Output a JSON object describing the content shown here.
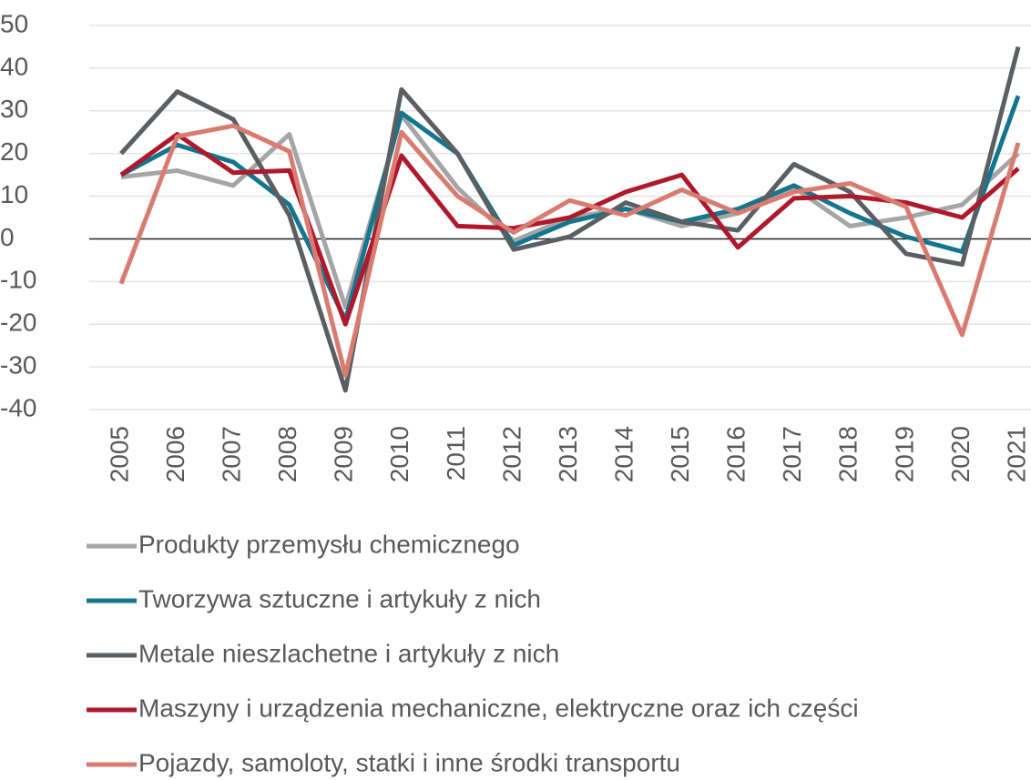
{
  "chart_data": {
    "type": "line",
    "categories": [
      "2005",
      "2006",
      "2007",
      "2008",
      "2009",
      "2010",
      "2011",
      "2012",
      "2013",
      "2014",
      "2015",
      "2016",
      "2017",
      "2018",
      "2019",
      "2020",
      "2021"
    ],
    "series": [
      {
        "name": "Produkty przemysłu chemicznego",
        "color": "#a5a5a5",
        "values": [
          14.5,
          16,
          12.5,
          24.5,
          -16,
          29,
          12,
          -0.5,
          5,
          7,
          3,
          6,
          12,
          3,
          5,
          8,
          20
        ]
      },
      {
        "name": "Tworzywa sztuczne i artykuły z nich",
        "color": "#14758f",
        "values": [
          15,
          22,
          18,
          8,
          -19,
          29.5,
          20,
          -1.5,
          4,
          7,
          4,
          7,
          12.5,
          6,
          0.5,
          -3,
          33.5
        ]
      },
      {
        "name": "Metale nieszlachetne i artykuły z nich",
        "color": "#5a5f63",
        "values": [
          20,
          34.5,
          28,
          5.5,
          -35.5,
          35,
          20,
          -2.5,
          0.5,
          8.5,
          4,
          2,
          17.5,
          11,
          -3.5,
          -6,
          45
        ]
      },
      {
        "name": "Maszyny i urządzenia mechaniczne, elektryczne oraz ich części",
        "color": "#b0182b",
        "values": [
          15,
          24.5,
          15.5,
          16,
          -20,
          19.5,
          3,
          2.5,
          5,
          11,
          15,
          -2,
          9.5,
          10,
          8.5,
          5,
          16.5
        ]
      },
      {
        "name": "Pojazdy, samoloty, statki i inne środki transportu",
        "color": "#d97b70",
        "values": [
          -10.5,
          24,
          26.5,
          20.5,
          -32,
          25,
          10,
          1.5,
          9,
          5.5,
          11.5,
          6,
          11,
          13,
          7.5,
          -22.5,
          22.5
        ]
      }
    ],
    "ylim": [
      -40,
      50
    ],
    "yticks": [
      -40,
      -30,
      -20,
      -10,
      0,
      10,
      20,
      30,
      40,
      50
    ],
    "grid": true
  }
}
